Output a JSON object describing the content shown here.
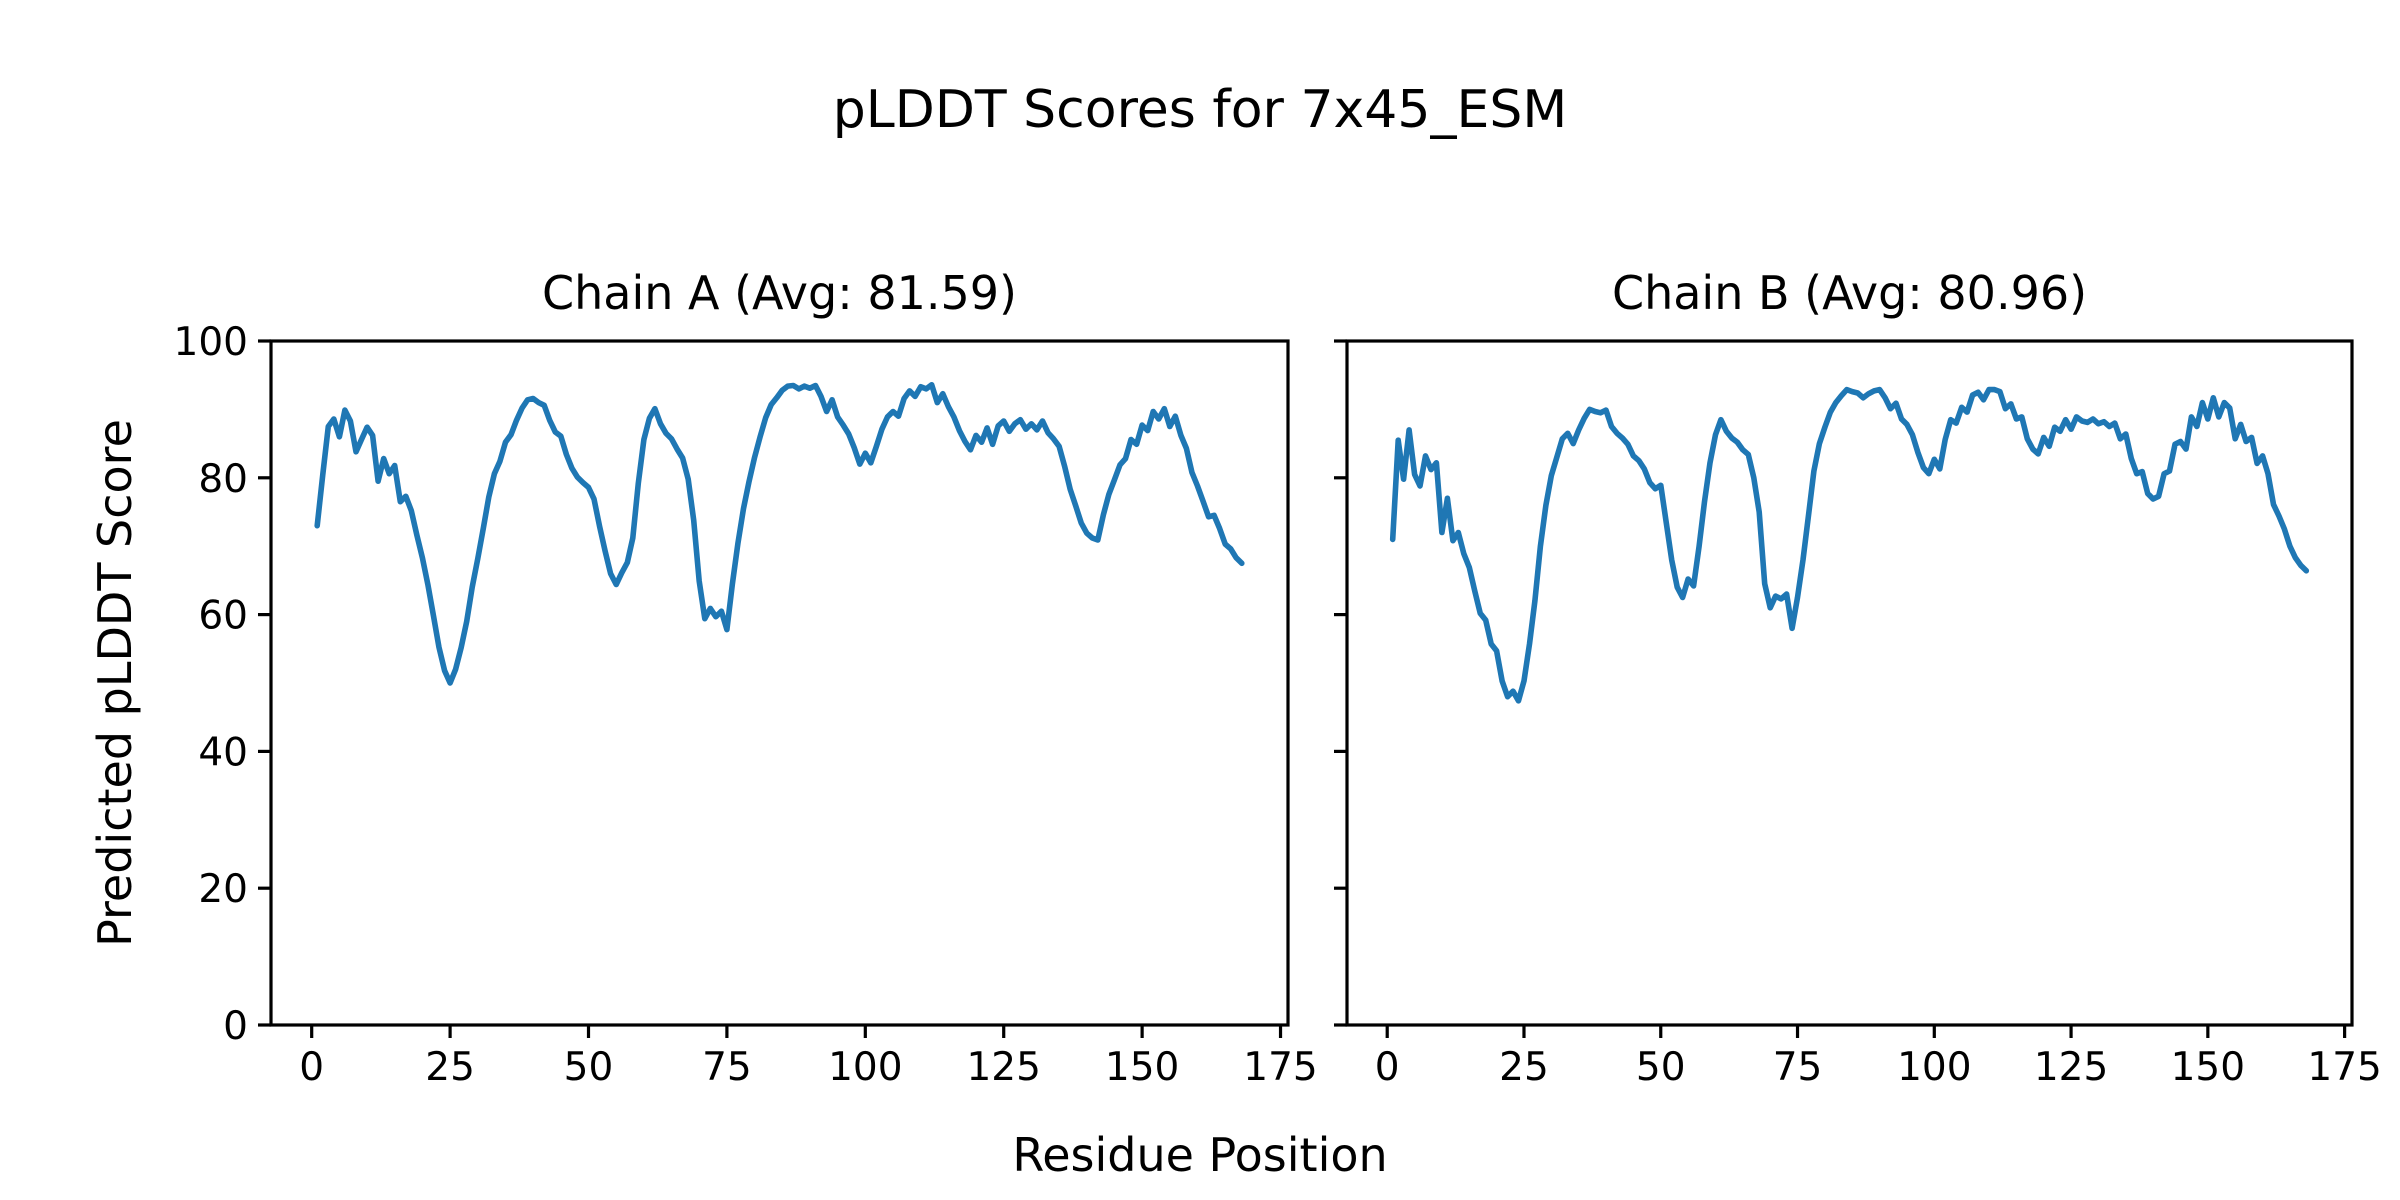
{
  "figure": {
    "title": "pLDDT Scores for 7x45_ESM",
    "xlabel": "Residue Position",
    "ylabel": "Predicted pLDDT Score",
    "background_color": "#ffffff",
    "text_color": "#000000",
    "line_color": "#1f77b4"
  },
  "chart_data": [
    {
      "type": "line",
      "title": "Chain A (Avg: 81.59)",
      "chain": "A",
      "avg_label": "81.59",
      "xlabel": "Residue Position",
      "ylabel": "Predicted pLDDT Score",
      "xlim": [
        -7.35,
        176.35
      ],
      "ylim": [
        0,
        100
      ],
      "xticks": [
        0,
        25,
        50,
        75,
        100,
        125,
        150,
        175
      ],
      "yticks": [
        0,
        20,
        40,
        60,
        80,
        100
      ],
      "show_ytick_labels": true,
      "grid": false,
      "legend": "none",
      "x_start": 1,
      "values": [
        73.0,
        80.5,
        87.5,
        88.6,
        86.0,
        89.9,
        88.3,
        83.8,
        85.6,
        87.4,
        86.2,
        79.5,
        82.8,
        80.6,
        81.8,
        76.5,
        77.3,
        75.2,
        71.6,
        68.3,
        64.3,
        59.8,
        55.2,
        51.8,
        50.0,
        52.0,
        55.2,
        59.0,
        64.0,
        68.2,
        72.6,
        77.2,
        80.6,
        82.4,
        85.2,
        86.3,
        88.4,
        90.2,
        91.4,
        91.6,
        91.0,
        90.6,
        88.4,
        86.7,
        86.1,
        83.4,
        81.4,
        80.1,
        79.3,
        78.6,
        76.9,
        72.9,
        69.3,
        66.0,
        64.4,
        66.1,
        67.6,
        71.2,
        79.2,
        85.6,
        88.7,
        90.1,
        87.9,
        86.5,
        85.7,
        84.2,
        82.9,
        79.8,
        73.8,
        64.9,
        59.4,
        60.9,
        59.7,
        60.5,
        57.8,
        64.5,
        70.5,
        75.5,
        79.5,
        83.0,
        86.0,
        88.8,
        90.7,
        91.7,
        92.8,
        93.4,
        93.5,
        93.0,
        93.4,
        93.1,
        93.5,
        91.9,
        89.7,
        91.4,
        88.9,
        87.7,
        86.4,
        84.4,
        82.0,
        83.6,
        82.2,
        84.6,
        87.1,
        88.9,
        89.7,
        89.0,
        91.6,
        92.7,
        91.9,
        93.3,
        93.0,
        93.6,
        91.0,
        92.3,
        90.4,
        88.9,
        86.9,
        85.3,
        84.1,
        86.2,
        85.2,
        87.3,
        84.9,
        87.6,
        88.3,
        86.8,
        87.9,
        88.5,
        87.1,
        87.9,
        87.0,
        88.3,
        86.6,
        85.7,
        84.6,
        81.7,
        78.3,
        75.9,
        73.4,
        71.9,
        71.2,
        70.9,
        74.6,
        77.6,
        79.7,
        81.9,
        82.8,
        85.6,
        84.9,
        87.7,
        86.9,
        89.7,
        88.6,
        90.1,
        87.5,
        89.0,
        86.2,
        84.3,
        80.8,
        78.8,
        76.6,
        74.3,
        74.5,
        72.6,
        70.3,
        69.6,
        68.3,
        67.5
      ]
    },
    {
      "type": "line",
      "title": "Chain B (Avg: 80.96)",
      "chain": "B",
      "avg_label": "80.96",
      "xlabel": "Residue Position",
      "ylabel": "Predicted pLDDT Score",
      "xlim": [
        -7.35,
        176.35
      ],
      "ylim": [
        0,
        100
      ],
      "xticks": [
        0,
        25,
        50,
        75,
        100,
        125,
        150,
        175
      ],
      "yticks": [
        0,
        20,
        40,
        60,
        80,
        100
      ],
      "show_ytick_labels": false,
      "grid": false,
      "legend": "none",
      "x_start": 1,
      "values": [
        71.0,
        85.5,
        79.8,
        87.0,
        80.5,
        78.8,
        83.2,
        81.2,
        82.2,
        72.0,
        77.0,
        70.8,
        72.0,
        68.9,
        66.9,
        63.5,
        60.2,
        59.2,
        55.7,
        54.7,
        50.3,
        48.0,
        48.8,
        47.4,
        50.3,
        55.7,
        62.0,
        70.0,
        76.0,
        80.3,
        83.0,
        85.7,
        86.5,
        85.0,
        87.0,
        88.7,
        90.0,
        89.7,
        89.5,
        89.9,
        87.5,
        86.5,
        85.8,
        84.9,
        83.2,
        82.5,
        81.3,
        79.3,
        78.4,
        78.9,
        73.5,
        68.0,
        64.0,
        62.5,
        65.2,
        64.2,
        70.0,
        76.5,
        82.2,
        86.3,
        88.5,
        86.8,
        85.8,
        85.2,
        84.1,
        83.4,
        80.0,
        75.0,
        64.5,
        61.0,
        62.7,
        62.3,
        63.0,
        58.0,
        62.5,
        68.0,
        74.5,
        81.0,
        85.0,
        87.4,
        89.6,
        91.0,
        92.0,
        92.9,
        92.6,
        92.4,
        91.7,
        92.3,
        92.7,
        92.9,
        91.7,
        90.1,
        90.9,
        88.6,
        87.8,
        86.3,
        83.7,
        81.5,
        80.6,
        82.7,
        81.3,
        85.6,
        88.5,
        88.0,
        90.3,
        89.6,
        92.1,
        92.5,
        91.4,
        92.9,
        92.9,
        92.6,
        90.1,
        90.8,
        88.6,
        88.9,
        85.7,
        84.2,
        83.5,
        85.9,
        84.6,
        87.4,
        86.8,
        88.5,
        87.1,
        88.9,
        88.3,
        88.1,
        88.6,
        87.9,
        88.2,
        87.5,
        88.0,
        85.7,
        86.4,
        82.8,
        80.6,
        80.9,
        77.7,
        76.9,
        77.3,
        80.6,
        81.0,
        84.9,
        85.3,
        84.2,
        88.9,
        87.5,
        91.0,
        88.6,
        91.7,
        88.9,
        91.0,
        90.2,
        85.7,
        87.8,
        85.3,
        85.9,
        82.1,
        83.2,
        80.6,
        76.1,
        74.4,
        72.5,
        70.0,
        68.3,
        67.2,
        66.4
      ]
    }
  ]
}
